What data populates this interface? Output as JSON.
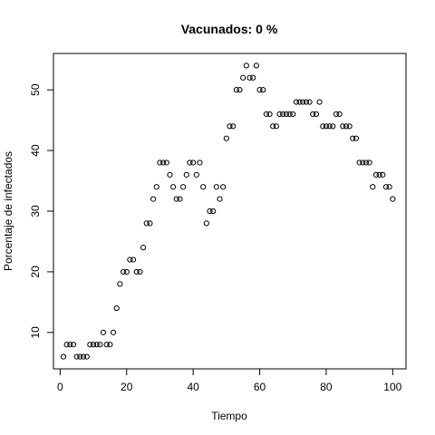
{
  "chart_data": {
    "type": "scatter",
    "title": "Vacunados:  0 %",
    "xlabel": "Tiempo",
    "ylabel": "Porcentaje de infectados",
    "xlim": [
      -2,
      104
    ],
    "ylim": [
      4,
      56
    ],
    "xticks": [
      0,
      20,
      40,
      60,
      80,
      100
    ],
    "yticks": [
      10,
      20,
      30,
      40,
      50
    ],
    "xtick_labels": [
      "0",
      "20",
      "40",
      "60",
      "80",
      "100"
    ],
    "ytick_labels": [
      "10",
      "20",
      "30",
      "40",
      "50"
    ],
    "grid": false,
    "legend": false,
    "marker": "open-circle",
    "color": "#000000",
    "x": [
      1,
      2,
      3,
      4,
      5,
      6,
      7,
      8,
      9,
      10,
      11,
      12,
      13,
      14,
      15,
      16,
      17,
      18,
      19,
      20,
      21,
      22,
      23,
      24,
      25,
      26,
      27,
      28,
      29,
      30,
      31,
      32,
      33,
      34,
      35,
      36,
      37,
      38,
      39,
      40,
      41,
      42,
      43,
      44,
      45,
      46,
      47,
      48,
      49,
      50,
      51,
      52,
      53,
      54,
      55,
      56,
      57,
      58,
      59,
      60,
      61,
      62,
      63,
      64,
      65,
      66,
      67,
      68,
      69,
      70,
      71,
      72,
      73,
      74,
      75,
      76,
      77,
      78,
      79,
      80,
      81,
      82,
      83,
      84,
      85,
      86,
      87,
      88,
      89,
      90,
      91,
      92,
      93,
      94,
      95,
      96,
      97,
      98,
      99,
      100
    ],
    "y": [
      6,
      8,
      8,
      8,
      6,
      6,
      6,
      6,
      8,
      8,
      8,
      8,
      10,
      8,
      8,
      10,
      14,
      18,
      20,
      20,
      22,
      22,
      20,
      20,
      24,
      28,
      28,
      32,
      34,
      38,
      38,
      38,
      36,
      34,
      32,
      32,
      34,
      36,
      38,
      38,
      36,
      38,
      34,
      28,
      30,
      30,
      34,
      32,
      34,
      42,
      44,
      44,
      50,
      50,
      52,
      54,
      52,
      52,
      54,
      50,
      50,
      46,
      46,
      44,
      44,
      46,
      46,
      46,
      46,
      46,
      48,
      48,
      48,
      48,
      48,
      46,
      46,
      48,
      44,
      44,
      44,
      44,
      46,
      46,
      44,
      44,
      44,
      42,
      42,
      38,
      38,
      38,
      38,
      34,
      36,
      36,
      36,
      34,
      34,
      32
    ]
  }
}
